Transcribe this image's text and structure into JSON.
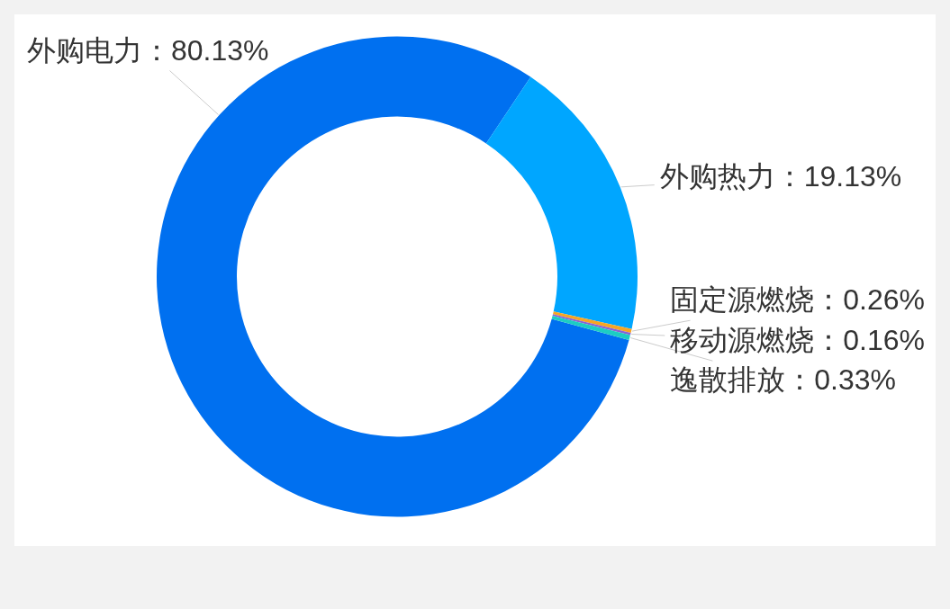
{
  "chart_data": {
    "type": "donut",
    "categories": [
      "外购电力",
      "外购热力",
      "固定源燃烧",
      "移动源燃烧",
      "逸散排放"
    ],
    "values": [
      80.13,
      19.13,
      0.26,
      0.16,
      0.33
    ],
    "colors": [
      "#0070f0",
      "#00a6ff",
      "#f6a623",
      "#8a63d4",
      "#1ccdc3"
    ],
    "value_labels": [
      "80.13%",
      "19.13%",
      "0.26%",
      "0.16%",
      "0.33%"
    ]
  }
}
